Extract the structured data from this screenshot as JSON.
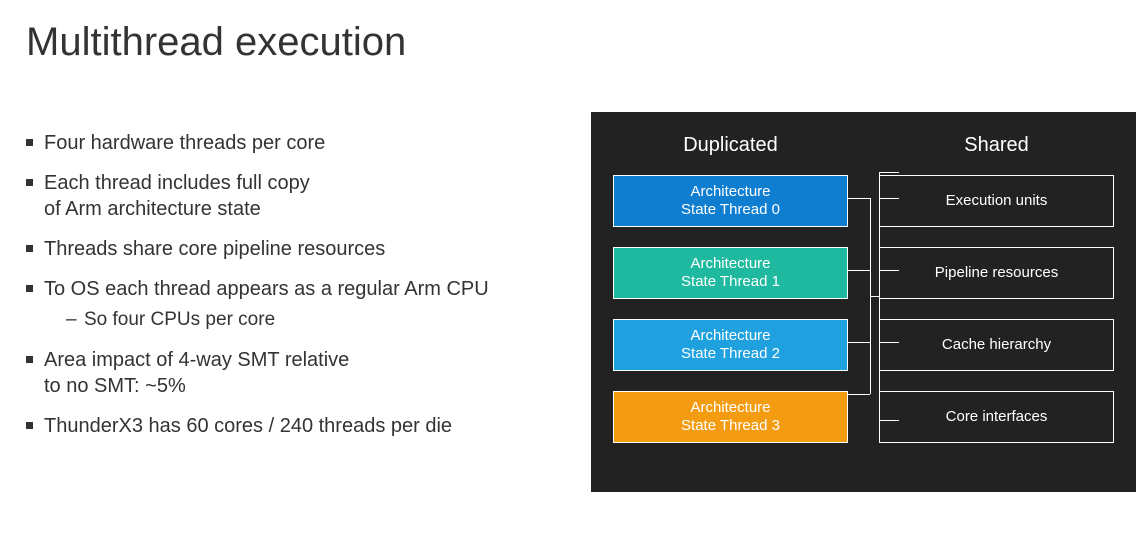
{
  "title": "Multithread execution",
  "bullets": [
    {
      "text": "Four hardware threads per core"
    },
    {
      "text": "Each thread includes full copy\nof Arm architecture state"
    },
    {
      "text": "Threads share core pipeline resources"
    },
    {
      "text": "To OS each thread appears as a regular Arm CPU",
      "sub": "So four CPUs per core"
    },
    {
      "text": "Area impact of 4-way SMT relative\nto no SMT: ~5%"
    },
    {
      "text": "ThunderX3 has 60 cores / 240 threads per die"
    }
  ],
  "diagram": {
    "background": "#222222",
    "text_color": "#ffffff",
    "columns": {
      "duplicated": {
        "header": "Duplicated",
        "boxes": [
          {
            "label": "Architecture\nState Thread 0",
            "fill": "#0f7ed1"
          },
          {
            "label": "Architecture\nState Thread 1",
            "fill": "#1fb9a0"
          },
          {
            "label": "Architecture\nState Thread 2",
            "fill": "#1fa1e0"
          },
          {
            "label": "Architecture\nState Thread 3",
            "fill": "#f39c12"
          }
        ]
      },
      "shared": {
        "header": "Shared",
        "boxes": [
          {
            "label": "Execution units"
          },
          {
            "label": "Pipeline resources"
          },
          {
            "label": "Cache hierarchy"
          },
          {
            "label": "Core interfaces"
          }
        ]
      }
    }
  }
}
